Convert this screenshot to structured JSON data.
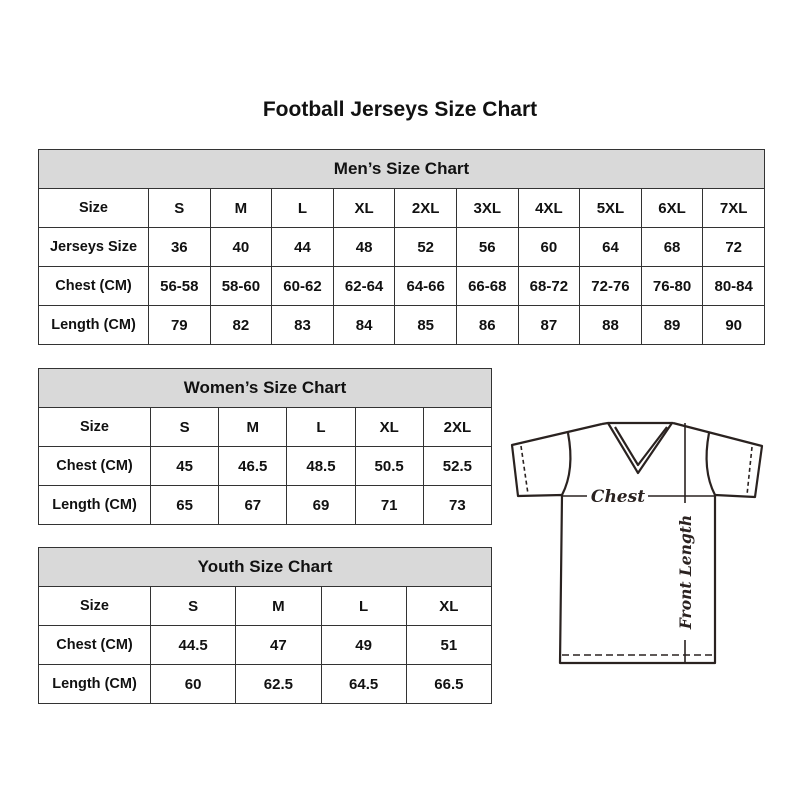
{
  "title": "Football Jerseys Size Chart",
  "men": {
    "title": "Men’s Size Chart",
    "rows": [
      {
        "label": "Size",
        "values": [
          "S",
          "M",
          "L",
          "XL",
          "2XL",
          "3XL",
          "4XL",
          "5XL",
          "6XL",
          "7XL"
        ]
      },
      {
        "label": "Jerseys Size",
        "values": [
          "36",
          "40",
          "44",
          "48",
          "52",
          "56",
          "60",
          "64",
          "68",
          "72"
        ]
      },
      {
        "label": "Chest (CM)",
        "values": [
          "56-58",
          "58-60",
          "60-62",
          "62-64",
          "64-66",
          "66-68",
          "68-72",
          "72-76",
          "76-80",
          "80-84"
        ]
      },
      {
        "label": "Length (CM)",
        "values": [
          "79",
          "82",
          "83",
          "84",
          "85",
          "86",
          "87",
          "88",
          "89",
          "90"
        ]
      }
    ]
  },
  "women": {
    "title": "Women’s Size Chart",
    "rows": [
      {
        "label": "Size",
        "values": [
          "S",
          "M",
          "L",
          "XL",
          "2XL"
        ]
      },
      {
        "label": "Chest (CM)",
        "values": [
          "45",
          "46.5",
          "48.5",
          "50.5",
          "52.5"
        ]
      },
      {
        "label": "Length (CM)",
        "values": [
          "65",
          "67",
          "69",
          "71",
          "73"
        ]
      }
    ]
  },
  "youth": {
    "title": "Youth Size Chart",
    "rows": [
      {
        "label": "Size",
        "values": [
          "S",
          "M",
          "L",
          "XL"
        ]
      },
      {
        "label": "Chest (CM)",
        "values": [
          "44.5",
          "47",
          "49",
          "51"
        ]
      },
      {
        "label": "Length (CM)",
        "values": [
          "60",
          "62.5",
          "64.5",
          "66.5"
        ]
      }
    ]
  },
  "diagram": {
    "chest_label": "Chest",
    "length_label": "Front Length"
  }
}
